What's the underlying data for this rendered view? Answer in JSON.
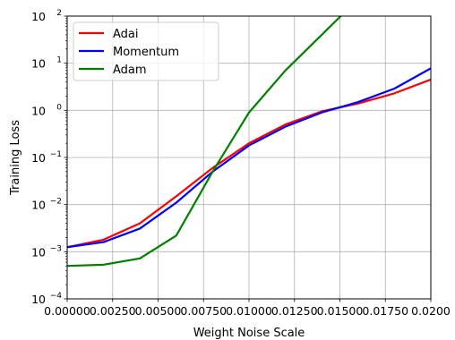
{
  "chart_data": {
    "type": "line",
    "xlabel": "Weight Noise Scale",
    "ylabel": "Training Loss",
    "xscale": "linear",
    "yscale": "log",
    "xlim": [
      0.0,
      0.02
    ],
    "ylim": [
      0.0001,
      100
    ],
    "grid": true,
    "legend_position": "upper-left",
    "x_ticks": [
      {
        "value": 0.0,
        "label": "0.00000"
      },
      {
        "value": 0.0025,
        "label": "0.00250"
      },
      {
        "value": 0.005,
        "label": "0.00500"
      },
      {
        "value": 0.0075,
        "label": "0.00750"
      },
      {
        "value": 0.01,
        "label": "0.01000"
      },
      {
        "value": 0.0125,
        "label": "0.01250"
      },
      {
        "value": 0.015,
        "label": "0.01500"
      },
      {
        "value": 0.0175,
        "label": "0.01750"
      },
      {
        "value": 0.02,
        "label": "0.0200"
      }
    ],
    "y_ticks": [
      {
        "value": 0.0001,
        "base": "10",
        "exp": "−4"
      },
      {
        "value": 0.001,
        "base": "10",
        "exp": "−3"
      },
      {
        "value": 0.01,
        "base": "10",
        "exp": "−2"
      },
      {
        "value": 0.1,
        "base": "10",
        "exp": "−1"
      },
      {
        "value": 1,
        "base": "10",
        "exp": "0"
      },
      {
        "value": 10,
        "base": "10",
        "exp": "1"
      },
      {
        "value": 100,
        "base": "10",
        "exp": "2"
      }
    ],
    "x": [
      0.0,
      0.002,
      0.004,
      0.006,
      0.008,
      0.01,
      0.012,
      0.014,
      0.016,
      0.018,
      0.02
    ],
    "series": [
      {
        "name": "Adai",
        "color": "#ff0000",
        "values": [
          0.00125,
          0.0018,
          0.004,
          0.015,
          0.06,
          0.2,
          0.5,
          0.95,
          1.4,
          2.3,
          4.5
        ]
      },
      {
        "name": "Momentum",
        "color": "#0000ff",
        "values": [
          0.00125,
          0.0016,
          0.0031,
          0.011,
          0.05,
          0.18,
          0.45,
          0.9,
          1.5,
          2.9,
          7.8
        ]
      },
      {
        "name": "Adam",
        "color": "#008000",
        "values": [
          0.0005,
          0.00053,
          0.00072,
          0.0022,
          0.05,
          0.9,
          7,
          40,
          230,
          null,
          null
        ]
      }
    ]
  }
}
